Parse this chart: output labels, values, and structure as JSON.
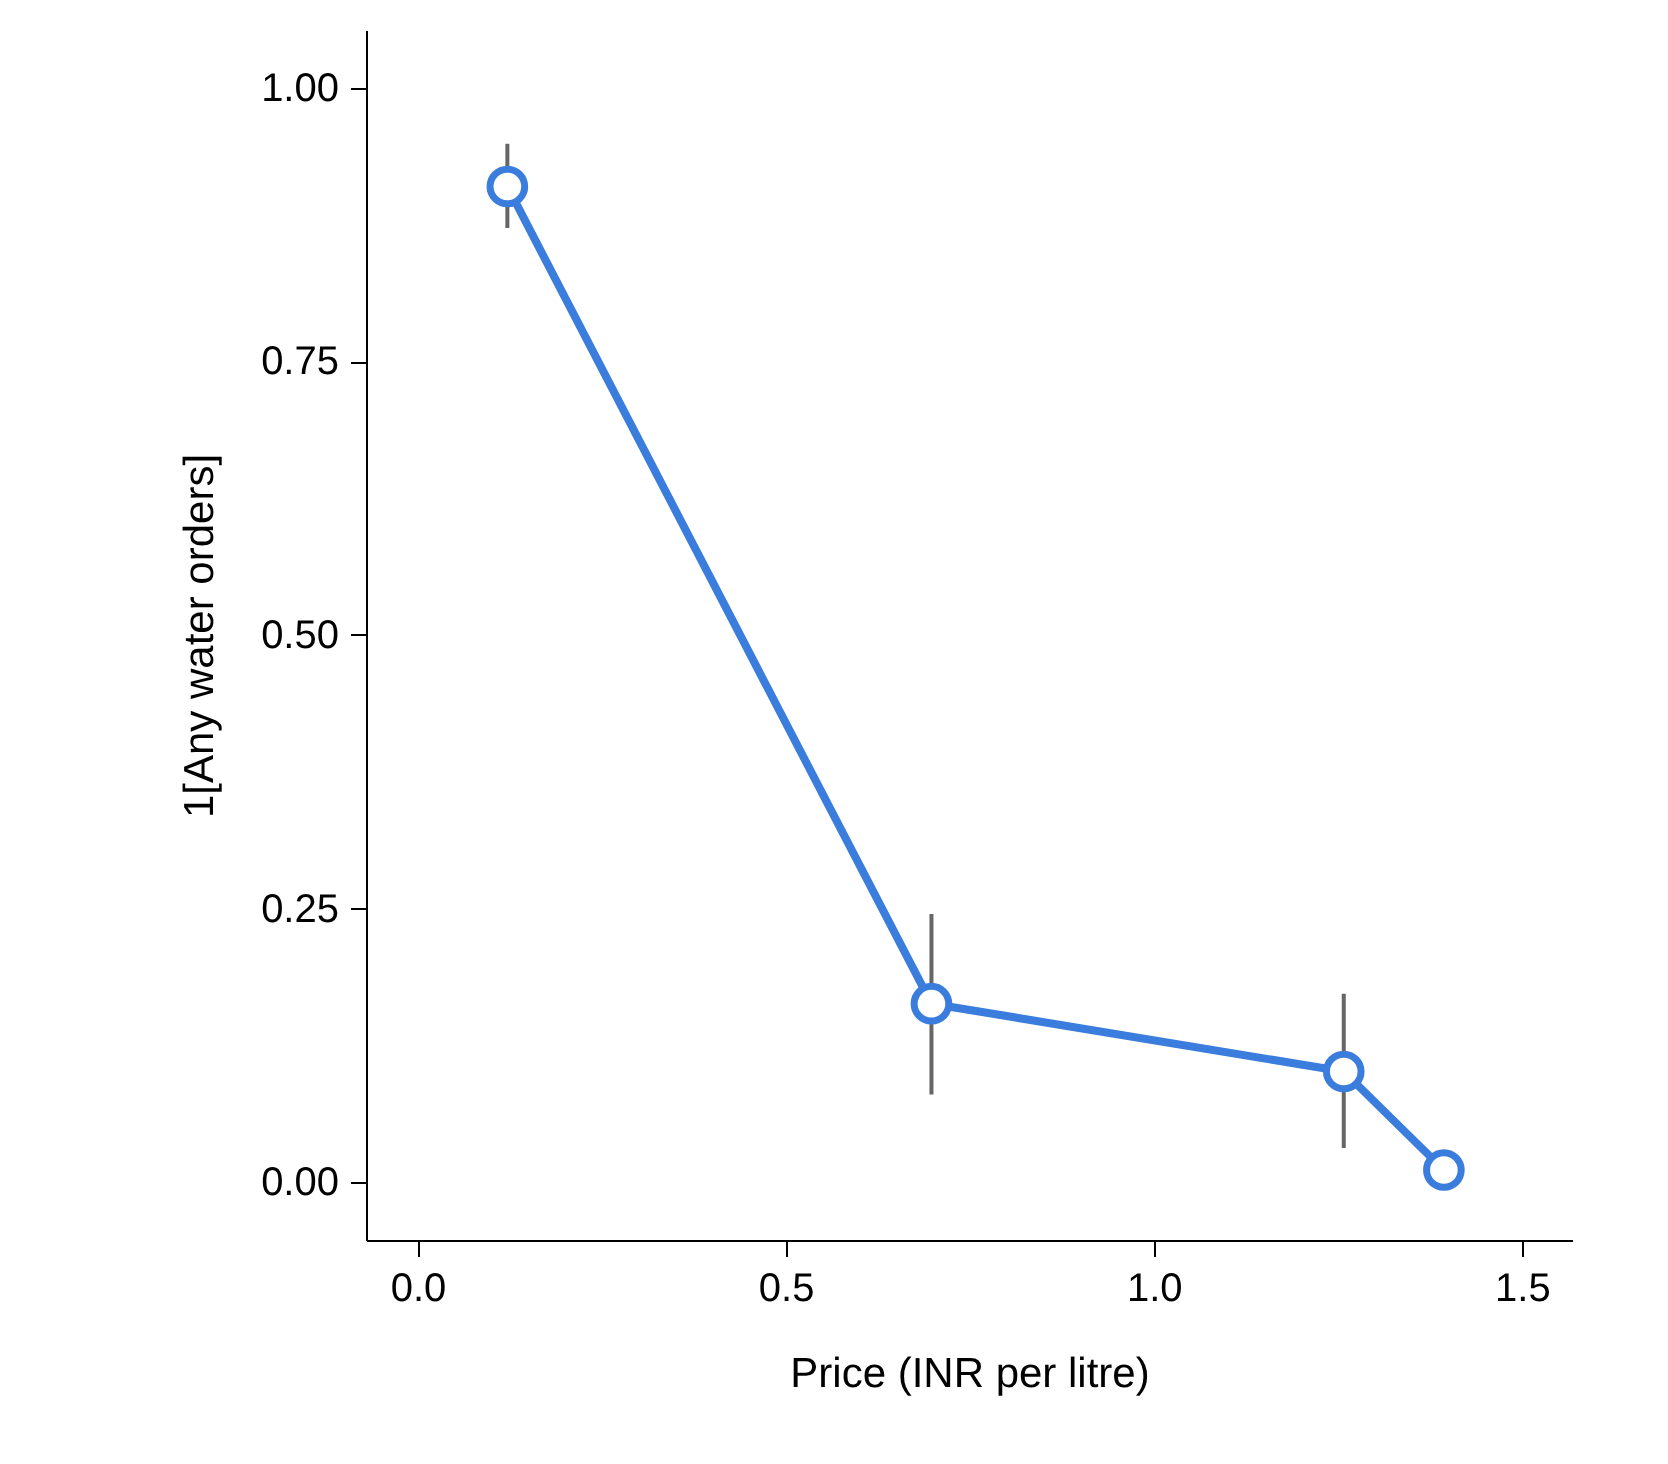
{
  "chart_data": {
    "type": "line",
    "xlabel": "Price (INR per litre)",
    "ylabel": "1[Any water orders]",
    "x": [
      0.122,
      0.698,
      1.258,
      1.394
    ],
    "series": [
      {
        "color": "#3b7ddd",
        "values": [
          0.91,
          0.163,
          0.101,
          0.011
        ],
        "errors": [
          [
            0.872,
            0.949
          ],
          [
            0.08,
            0.245
          ],
          [
            0.031,
            0.172
          ],
          null
        ]
      }
    ],
    "xlim": [
      -0.07,
      1.568
    ],
    "ylim": [
      -0.053,
      1.053
    ],
    "xticks": [
      {
        "value": 0,
        "label": "0.0"
      },
      0.5,
      {
        "value": 1,
        "label": "1.0"
      },
      1.5
    ],
    "yticks": [
      {
        "value": 0,
        "label": "0.00"
      },
      {
        "value": 0.25,
        "label": "0.25"
      },
      {
        "value": 0.5,
        "label": "0.50"
      },
      {
        "value": 0.75,
        "label": "0.75"
      },
      {
        "value": 1,
        "label": "1.00"
      }
    ],
    "grid": false,
    "marker": "circle",
    "line_style": "solid"
  }
}
